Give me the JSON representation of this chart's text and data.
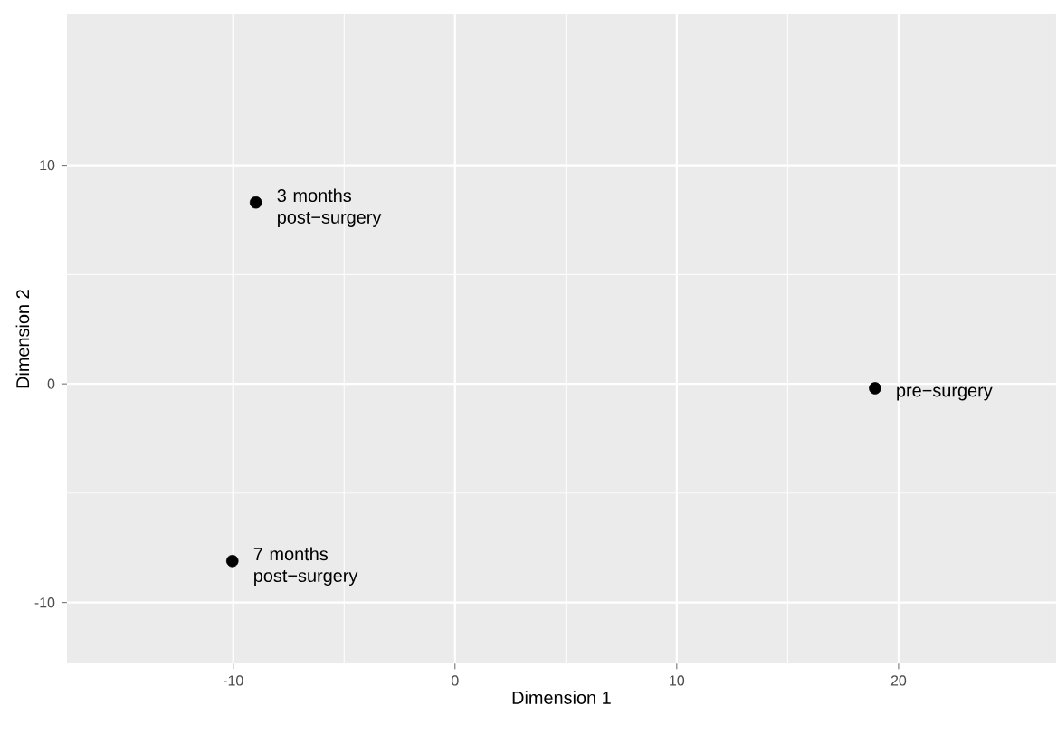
{
  "chart_data": {
    "type": "scatter",
    "xlabel": "Dimension 1",
    "ylabel": "Dimension 2",
    "x": [
      -8.98,
      -10.04,
      18.94
    ],
    "values": [
      8.3,
      -8.1,
      -0.2
    ],
    "color": "#000000",
    "xlim": [
      -17.5,
      27.1
    ],
    "ylim": [
      -12.8,
      16.9
    ],
    "xticks": [
      -10,
      0,
      10,
      20
    ],
    "yticks": [
      -10,
      0,
      10
    ],
    "grid": true,
    "annotations": [
      {
        "text": "3 months post−surgery",
        "x": -8.98,
        "y": 8.3
      },
      {
        "text": "7 months post−surgery",
        "x": -10.04,
        "y": -8.1
      },
      {
        "text": "pre−surgery",
        "x": 18.94,
        "y": -0.2
      }
    ]
  }
}
